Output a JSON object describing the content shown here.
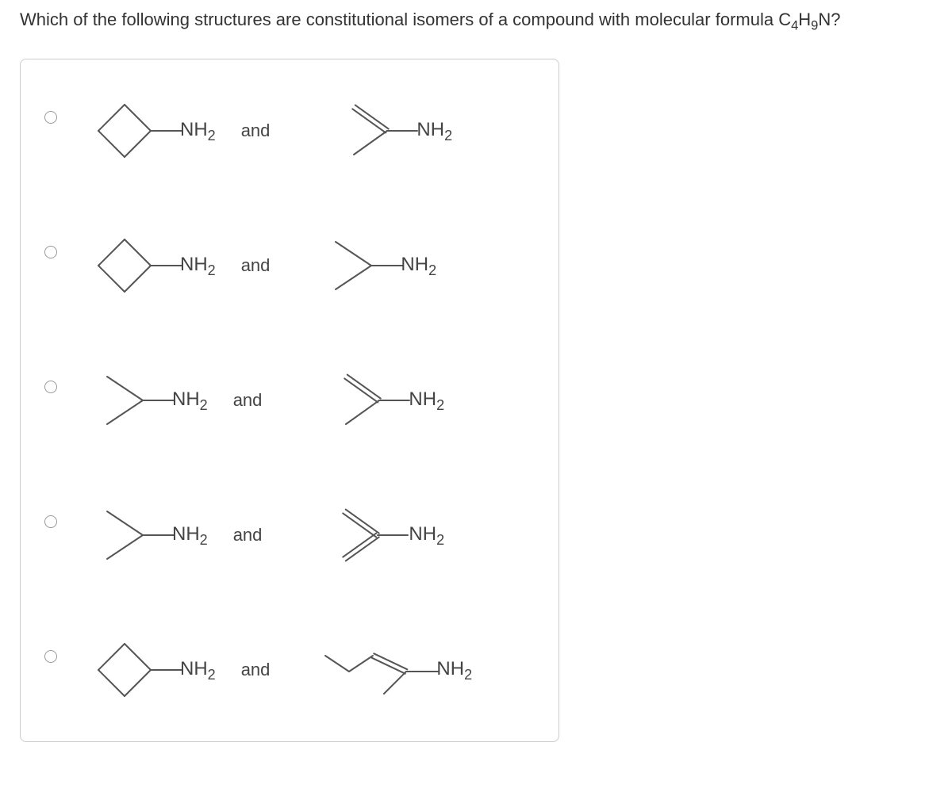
{
  "question": {
    "prefix": "Which of the following structures are constitutional isomers of a compound with molecular formula C",
    "sub1": "4",
    "mid1": "H",
    "sub2": "9",
    "mid2": "N?"
  },
  "labels": {
    "nh": "NH",
    "nh_sub": "2",
    "and": "and"
  },
  "options": [
    {
      "left_type": "cyclobutane",
      "right_type": "doublebond_dimethyl"
    },
    {
      "left_type": "cyclobutane",
      "right_type": "dimethyl_sat"
    },
    {
      "left_type": "dimethyl_sat",
      "right_type": "doublebond_dimethyl"
    },
    {
      "left_type": "dimethyl_sat",
      "right_type": "divinyl"
    },
    {
      "left_type": "cyclobutane",
      "right_type": "pentyl_double"
    }
  ],
  "style": {
    "stroke_color": "#555555",
    "stroke_width": 2,
    "double_gap": 3.0,
    "font_color": "#333333",
    "box_border": "#cccccc"
  }
}
